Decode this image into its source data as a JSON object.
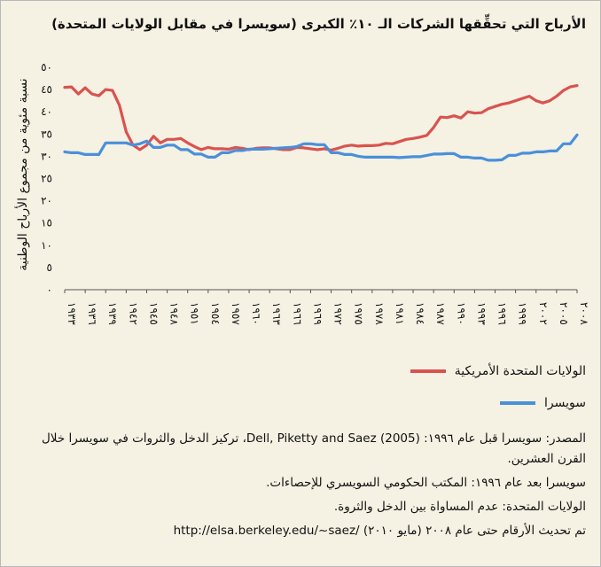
{
  "title": "الأرباح التي تحقِّقها الشركات الـ ١٠٪ الكبرى (سويسرا في مقابل الولايات المتحدة)",
  "colors": {
    "us": "#d9534f",
    "ch": "#4a90d9",
    "axis": "#555555"
  },
  "chart_data": {
    "type": "line",
    "title": "الأرباح التي تحقِّقها الشركات الـ ١٠٪ الكبرى (سويسرا في مقابل الولايات المتحدة)",
    "ylabel": "نسبة مئوية من مجموع الأرباح الوطنية",
    "xlabel": "",
    "ylim": [
      0,
      50
    ],
    "yticks": [
      0,
      5,
      10,
      15,
      20,
      25,
      30,
      35,
      40,
      45,
      50
    ],
    "ytick_labels": [
      "٠",
      "٥",
      "١٠",
      "١٥",
      "٢٠",
      "٢٥",
      "٣٠",
      "٣٥",
      "٤٠",
      "٤٥",
      "٥٠"
    ],
    "xlim": [
      1933,
      2008
    ],
    "xticks": [
      1933,
      1936,
      1939,
      1942,
      1945,
      1948,
      1951,
      1954,
      1957,
      1960,
      1963,
      1966,
      1969,
      1972,
      1975,
      1978,
      1981,
      1984,
      1987,
      1990,
      1993,
      1996,
      1999,
      2002,
      2005,
      2008
    ],
    "xtick_labels": [
      "١٩٣٣",
      "١٩٣٦",
      "١٩٣٩",
      "١٩٤٢",
      "١٩٤٥",
      "١٩٤٨",
      "١٩٥١",
      "١٩٥٤",
      "١٩٥٧",
      "١٩٦٠",
      "١٩٦٣",
      "١٩٦٦",
      "١٩٦٩",
      "١٩٧٢",
      "١٩٧٥",
      "١٩٧٨",
      "١٩٨١",
      "١٩٨٤",
      "١٩٨٧",
      "١٩٩٠",
      "١٩٩٣",
      "١٩٩٦",
      "١٩٩٩",
      "٢٠٠٢",
      "٢٠٠٥",
      "٢٠٠٨"
    ],
    "x": [
      1933,
      1934,
      1935,
      1936,
      1937,
      1938,
      1939,
      1940,
      1941,
      1942,
      1943,
      1944,
      1945,
      1946,
      1947,
      1948,
      1949,
      1950,
      1951,
      1952,
      1953,
      1954,
      1955,
      1956,
      1957,
      1958,
      1959,
      1960,
      1961,
      1962,
      1963,
      1964,
      1965,
      1966,
      1967,
      1968,
      1969,
      1970,
      1971,
      1972,
      1973,
      1974,
      1975,
      1976,
      1977,
      1978,
      1979,
      1980,
      1981,
      1982,
      1983,
      1984,
      1985,
      1986,
      1987,
      1988,
      1989,
      1990,
      1991,
      1992,
      1993,
      1994,
      1995,
      1996,
      1997,
      1998,
      1999,
      2000,
      2001,
      2002,
      2003,
      2004,
      2005,
      2006,
      2007,
      2008
    ],
    "series": [
      {
        "name": "الولايات المتحدة الأمريكية",
        "values": [
          45.5,
          45.6,
          44.0,
          45.4,
          44.0,
          43.6,
          45.0,
          44.8,
          41.5,
          35.5,
          32.5,
          31.5,
          32.5,
          34.5,
          33.0,
          33.8,
          33.8,
          34.0,
          33.0,
          32.2,
          31.5,
          32.0,
          31.7,
          31.7,
          31.6,
          32.0,
          31.8,
          31.5,
          31.8,
          31.9,
          31.9,
          31.7,
          31.5,
          31.5,
          32.0,
          31.9,
          31.7,
          31.5,
          31.7,
          31.4,
          31.8,
          32.3,
          32.5,
          32.3,
          32.4,
          32.4,
          32.5,
          32.9,
          32.8,
          33.3,
          33.8,
          34.0,
          34.3,
          34.7,
          36.5,
          38.8,
          38.7,
          39.1,
          38.6,
          40.0,
          39.7,
          39.8,
          40.7,
          41.2,
          41.7,
          42.0,
          42.5,
          43.0,
          43.5,
          42.5,
          42.0,
          42.5,
          43.5,
          44.8,
          45.6,
          45.9
        ]
      },
      {
        "name": "سويسرا",
        "values": [
          31.0,
          30.8,
          30.8,
          30.4,
          30.4,
          30.4,
          33.0,
          33.0,
          33.0,
          33.0,
          32.5,
          32.8,
          33.4,
          32.0,
          32.0,
          32.5,
          32.5,
          31.5,
          31.5,
          30.5,
          30.5,
          29.8,
          29.8,
          30.8,
          30.8,
          31.3,
          31.3,
          31.6,
          31.6,
          31.6,
          31.7,
          31.8,
          31.9,
          32.0,
          32.2,
          32.8,
          32.8,
          32.6,
          32.6,
          30.8,
          30.8,
          30.4,
          30.4,
          30.0,
          29.8,
          29.8,
          29.8,
          29.8,
          29.8,
          29.7,
          29.8,
          29.9,
          29.9,
          30.2,
          30.5,
          30.5,
          30.6,
          30.6,
          29.8,
          29.8,
          29.6,
          29.6,
          29.1,
          29.1,
          29.2,
          30.2,
          30.2,
          30.7,
          30.7,
          31.0,
          31.0,
          31.2,
          31.2,
          32.8,
          32.8,
          34.8
        ]
      }
    ],
    "legend": [
      "الولايات المتحدة الأمريكية",
      "سويسرا"
    ],
    "legend_position": "bottom",
    "grid": false
  },
  "legend": {
    "us_label": "الولايات المتحدة الأمريكية",
    "ch_label": "سويسرا"
  },
  "notes": {
    "source_line1": "المصدر: سويسرا قبل عام ١٩٩٦: Dell, Piketty and Saez (2005)، تركيز الدخل والثروات في سويسرا خلال القرن العشرين.",
    "source_line2": "سويسرا بعد عام ١٩٩٦: المكتب الحكومي السويسري للإحصاءات.",
    "source_line3": "الولايات المتحدة: عدم المساواة بين الدخل والثروة.",
    "source_line4": "تم تحديث الأرقام حتى عام ٢٠٠٨ (مايو ٢٠١٠) /http://elsa.berkeley.edu/~saez"
  }
}
